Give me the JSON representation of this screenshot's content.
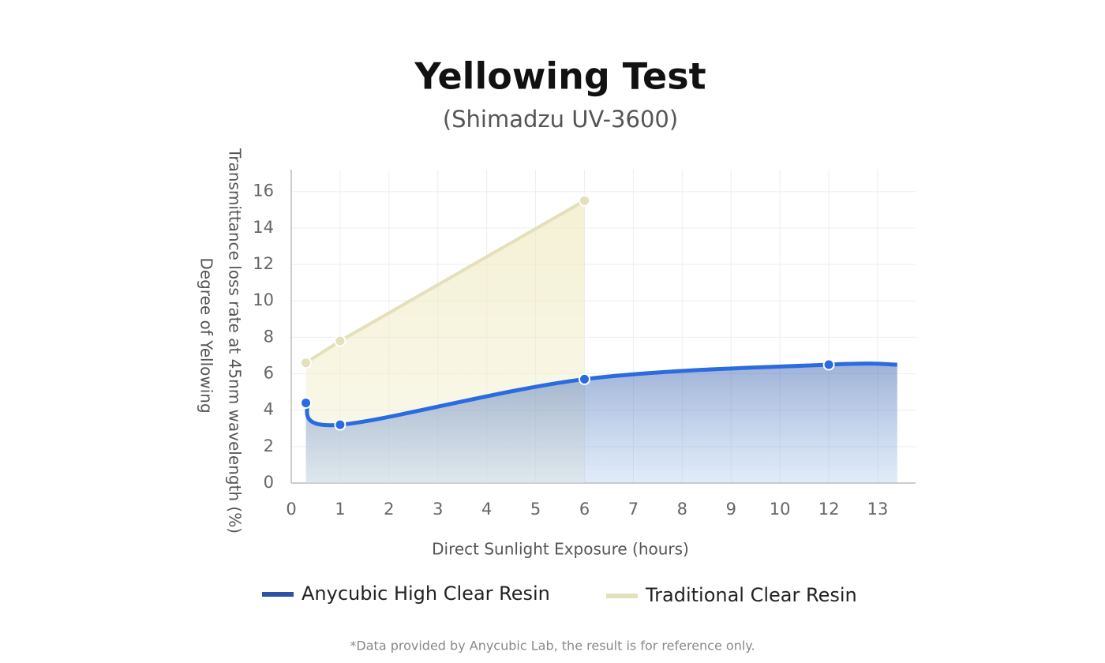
{
  "chart_data": {
    "type": "line",
    "title": "Yellowing Test",
    "subtitle": "(Shimadzu UV-3600)",
    "y_label": [
      "Transmittance loss rate at 45nm wavelength (%)",
      "Degree of Yellowing"
    ],
    "x_label": "Direct Sunlight Exposure (hours)",
    "footnote": "*Data provided by Anycubic Lab, the result is for reference only.",
    "xlim": [
      0,
      13.8
    ],
    "xticks": [
      0,
      1,
      2,
      3,
      4,
      5,
      6,
      7,
      8,
      9,
      10,
      12,
      13
    ],
    "ylim": [
      0,
      17.2
    ],
    "yticks": [
      0,
      2,
      4,
      6,
      8,
      10,
      12,
      14,
      16
    ],
    "grid": true,
    "series": [
      {
        "name": "Anycubic High Clear Resin",
        "color": "#2a6be0",
        "smooth": true,
        "x": [
          0.3,
          1,
          6,
          12,
          13.4
        ],
        "values": [
          4.4,
          3.2,
          5.7,
          6.5,
          6.5
        ],
        "markers": [
          true,
          true,
          true,
          true,
          false
        ]
      },
      {
        "name": "Traditional Clear Resin",
        "color": "#e3e0bb",
        "smooth": false,
        "x": [
          0.3,
          1,
          6
        ],
        "values": [
          6.6,
          7.8,
          15.5
        ],
        "markers": [
          true,
          true,
          true
        ]
      }
    ]
  }
}
